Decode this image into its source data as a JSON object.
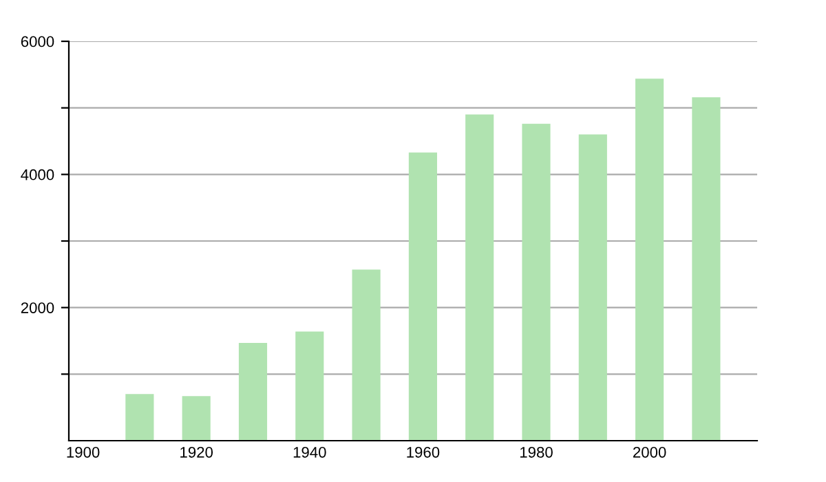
{
  "chart_data": {
    "type": "bar",
    "x": [
      1910,
      1920,
      1930,
      1940,
      1950,
      1960,
      1970,
      1980,
      1990,
      2000,
      2010
    ],
    "values": [
      700,
      670,
      1470,
      1640,
      2570,
      4330,
      4900,
      4760,
      4600,
      5440,
      5160
    ],
    "color": "#b0e3b0",
    "xlim": [
      1897.5,
      2019
    ],
    "xticks": [
      1900,
      1920,
      1940,
      1960,
      1980,
      2000
    ],
    "ylim": [
      0,
      6000
    ],
    "yticks": [
      {
        "value": 1000,
        "label": null
      },
      2000,
      {
        "value": 3000,
        "label": null
      },
      4000,
      {
        "value": 5000,
        "label": null
      },
      6000
    ],
    "grid": "y"
  }
}
